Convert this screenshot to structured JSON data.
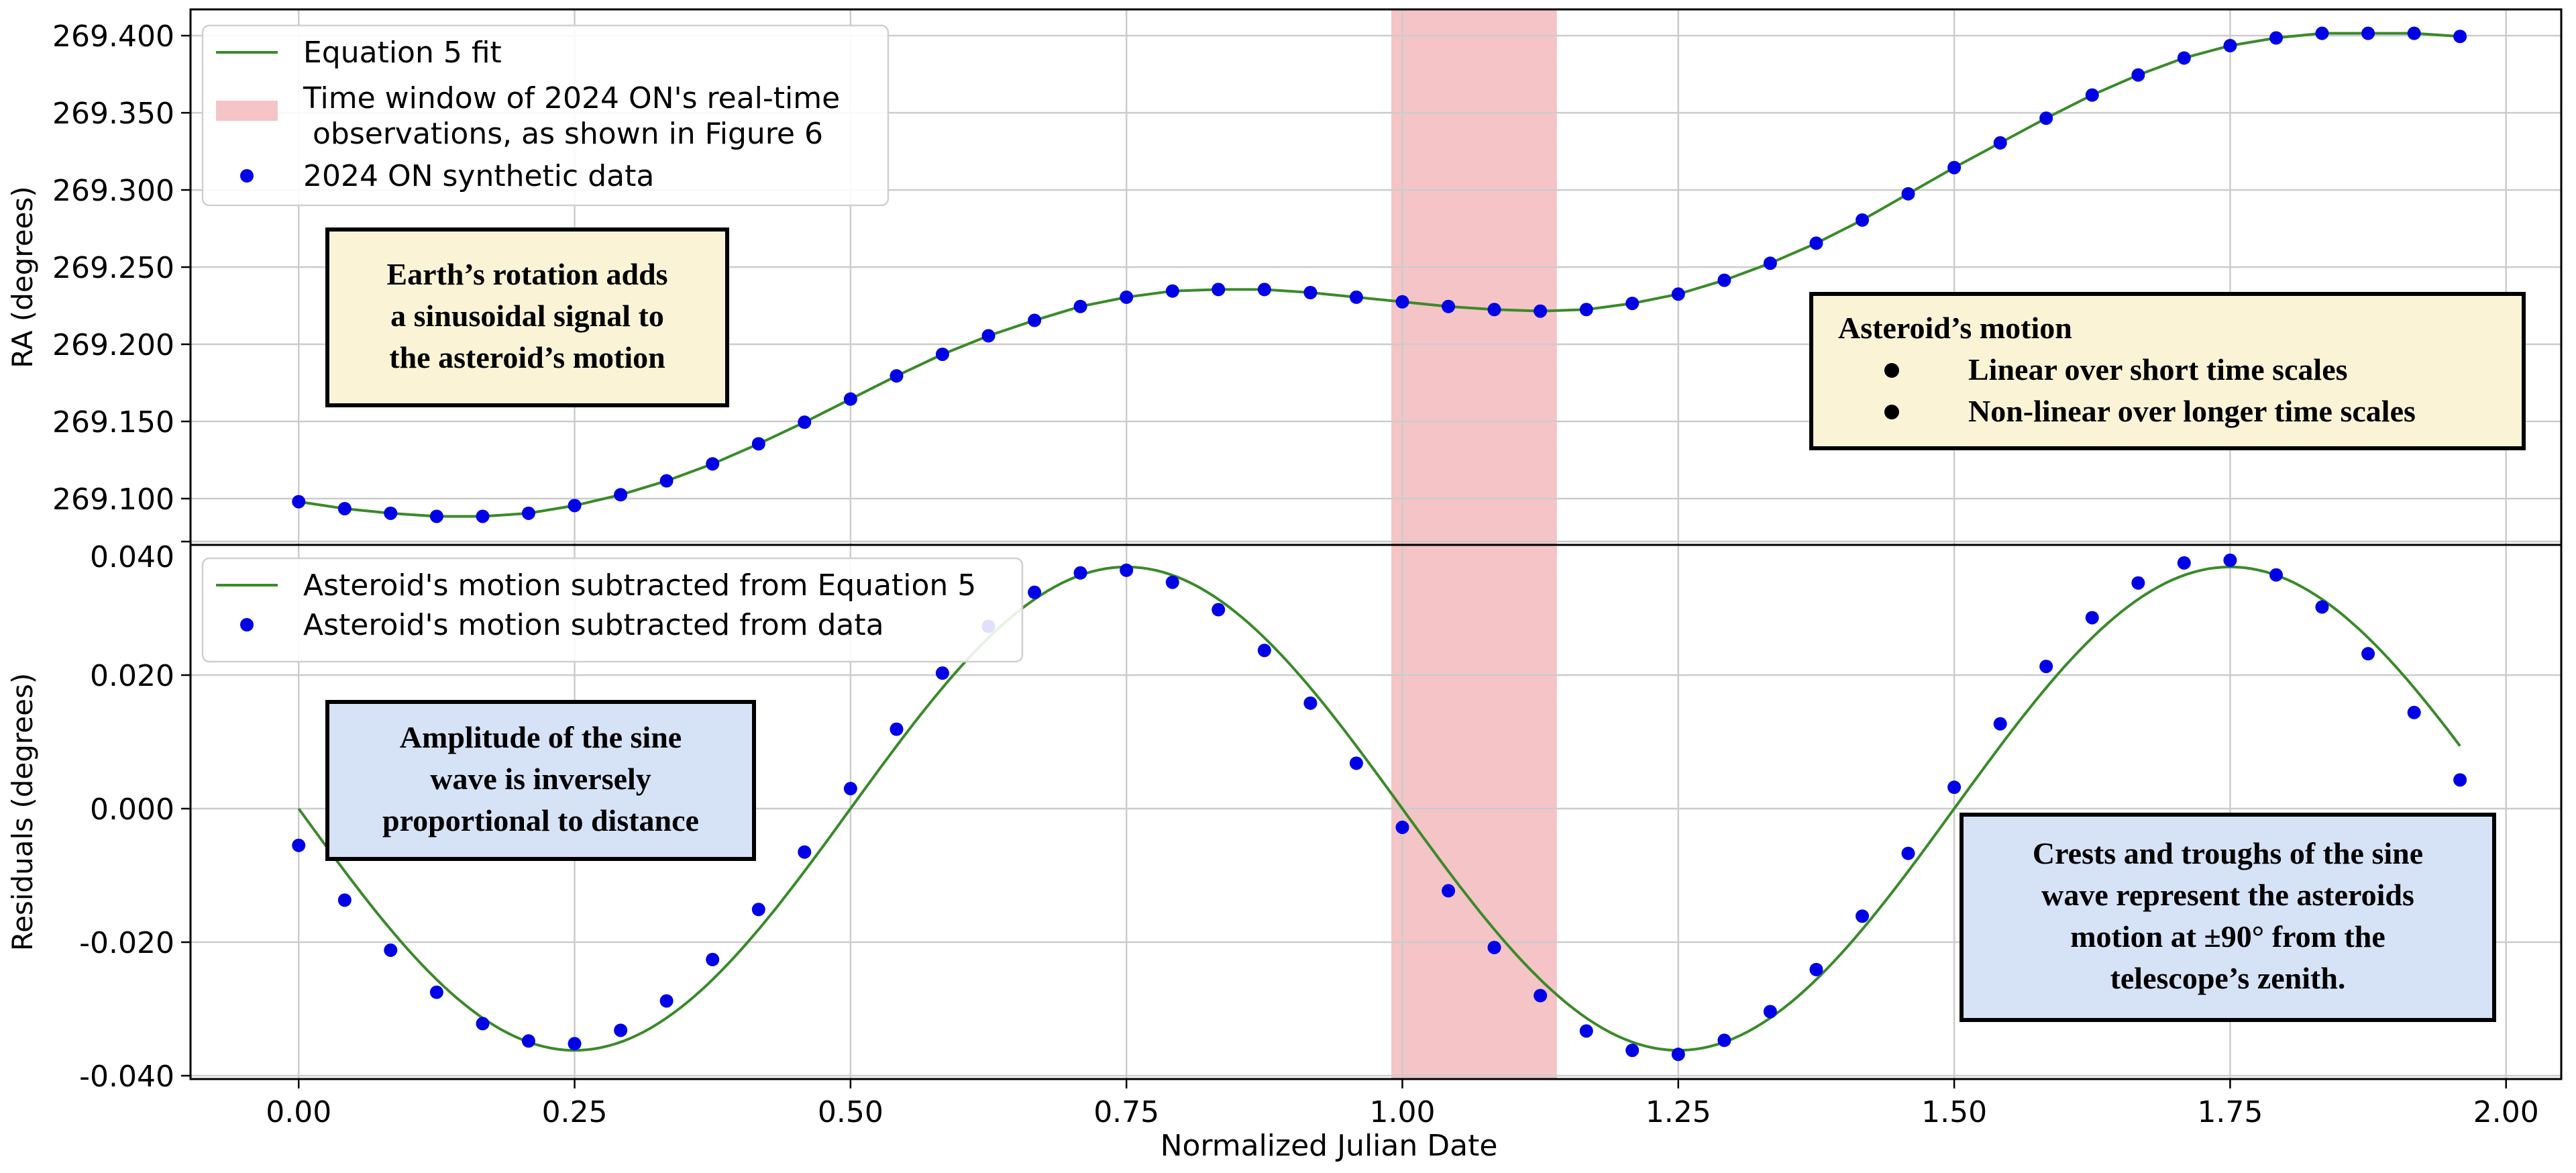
{
  "chart_data": [
    {
      "type": "line",
      "ylabel": "RA (degrees)",
      "xlim": [
        -0.098,
        2.05
      ],
      "ylim": [
        269.07,
        269.417
      ],
      "yticks": [
        "269.100",
        "269.150",
        "269.200",
        "269.250",
        "269.300",
        "269.350",
        "269.400"
      ],
      "ytick_values": [
        269.1,
        269.15,
        269.2,
        269.25,
        269.3,
        269.35,
        269.4
      ],
      "grid": true,
      "legend_position": "upper-left",
      "highlight_window": [
        0.99,
        1.14
      ],
      "series": [
        {
          "name": "Equation 5 fit",
          "type": "line",
          "color": "#3a8a2a",
          "x": [
            0.0,
            0.0417,
            0.0833,
            0.125,
            0.1667,
            0.2083,
            0.25,
            0.2917,
            0.3333,
            0.375,
            0.4167,
            0.4583,
            0.5,
            0.5417,
            0.5833,
            0.625,
            0.6667,
            0.7083,
            0.75,
            0.7917,
            0.8333,
            0.875,
            0.9167,
            0.9583,
            1.0,
            1.0417,
            1.0833,
            1.125,
            1.1667,
            1.2083,
            1.25,
            1.2917,
            1.3333,
            1.375,
            1.4167,
            1.4583,
            1.5,
            1.5417,
            1.5833,
            1.625,
            1.6667,
            1.7083,
            1.75,
            1.7917,
            1.8333,
            1.875,
            1.9167,
            1.9583
          ],
          "values": [
            269.098,
            269.0935,
            269.0905,
            269.0885,
            269.0885,
            269.0905,
            269.0955,
            269.1025,
            269.1115,
            269.1225,
            269.1355,
            269.1495,
            269.1645,
            269.1795,
            269.1935,
            269.2055,
            269.2155,
            269.2245,
            269.2305,
            269.2345,
            269.2355,
            269.2355,
            269.2335,
            269.2305,
            269.2275,
            269.2245,
            269.2225,
            269.2215,
            269.2225,
            269.2265,
            269.2325,
            269.2415,
            269.2525,
            269.2655,
            269.2805,
            269.2975,
            269.3145,
            269.3305,
            269.3465,
            269.3615,
            269.3745,
            269.3855,
            269.3935,
            269.3985,
            269.4015,
            269.4015,
            269.4015,
            269.3995
          ]
        },
        {
          "name": "Time window of 2024 ON's real-time\n observations, as shown in Figure 6",
          "type": "band",
          "color": "#f5c4c6"
        },
        {
          "name": "2024 ON synthetic data",
          "type": "scatter",
          "color": "#0000e6",
          "x": [
            0.0,
            0.0417,
            0.0833,
            0.125,
            0.1667,
            0.2083,
            0.25,
            0.2917,
            0.3333,
            0.375,
            0.4167,
            0.4583,
            0.5,
            0.5417,
            0.5833,
            0.625,
            0.6667,
            0.7083,
            0.75,
            0.7917,
            0.8333,
            0.875,
            0.9167,
            0.9583,
            1.0,
            1.0417,
            1.0833,
            1.125,
            1.1667,
            1.2083,
            1.25,
            1.2917,
            1.3333,
            1.375,
            1.4167,
            1.4583,
            1.5,
            1.5417,
            1.5833,
            1.625,
            1.6667,
            1.7083,
            1.75,
            1.7917,
            1.8333,
            1.875,
            1.9167,
            1.9583
          ],
          "values": [
            269.098,
            269.0935,
            269.0905,
            269.0885,
            269.0885,
            269.0905,
            269.0955,
            269.1025,
            269.1115,
            269.1225,
            269.1355,
            269.1495,
            269.1645,
            269.1795,
            269.1935,
            269.2055,
            269.2155,
            269.2245,
            269.2305,
            269.2345,
            269.2355,
            269.2355,
            269.2335,
            269.2305,
            269.2275,
            269.2245,
            269.2225,
            269.2215,
            269.2225,
            269.2265,
            269.2325,
            269.2415,
            269.2525,
            269.2655,
            269.2805,
            269.2975,
            269.3145,
            269.3305,
            269.3465,
            269.3615,
            269.3745,
            269.3855,
            269.3935,
            269.3985,
            269.4015,
            269.4015,
            269.4015,
            269.3995
          ]
        }
      ],
      "annotations": [
        {
          "lines": [
            "Earth’s rotation adds",
            "a sinusoidal signal to",
            "the asteroid’s motion"
          ],
          "color": "#fbf3d6"
        },
        {
          "lines": [
            "Asteroid’s motion"
          ],
          "bullets": [
            "Linear over short time scales",
            "Non-linear over longer time scales"
          ],
          "color": "#fbf3d6"
        }
      ]
    },
    {
      "type": "line",
      "xlabel": "Normalized Julian Date",
      "ylabel": "Residuals (degrees)",
      "xlim": [
        -0.098,
        2.05
      ],
      "ylim": [
        -0.0405,
        0.0395
      ],
      "xticks": [
        "0.00",
        "0.25",
        "0.50",
        "0.75",
        "1.00",
        "1.25",
        "1.50",
        "1.75",
        "2.00"
      ],
      "xtick_values": [
        0.0,
        0.25,
        0.5,
        0.75,
        1.0,
        1.25,
        1.5,
        1.75,
        2.0
      ],
      "yticks": [
        "0.040",
        "0.020",
        "0.000",
        "-0.020",
        "-0.040"
      ],
      "ytick_values": [
        0.04,
        0.02,
        0.0,
        -0.02,
        -0.04
      ],
      "grid": true,
      "legend_position": "upper-left",
      "highlight_window": [
        0.99,
        1.14
      ],
      "series": [
        {
          "name": "Asteroid's motion subtracted from Equation 5",
          "type": "line",
          "color": "#3a8a2a",
          "amplitude": 0.0362,
          "period": 1.0,
          "phase_zero": 0.0,
          "x_range": [
            0.0,
            1.9583
          ]
        },
        {
          "name": "Asteroid's motion subtracted from data",
          "type": "scatter",
          "color": "#0000e6",
          "x": [
            0.0,
            0.0417,
            0.0833,
            0.125,
            0.1667,
            0.2083,
            0.25,
            0.2917,
            0.3333,
            0.375,
            0.4167,
            0.4583,
            0.5,
            0.5417,
            0.5833,
            0.625,
            0.6667,
            0.7083,
            0.75,
            0.7917,
            0.8333,
            0.875,
            0.9167,
            0.9583,
            1.0,
            1.0417,
            1.0833,
            1.125,
            1.1667,
            1.2083,
            1.25,
            1.2917,
            1.3333,
            1.375,
            1.4167,
            1.4583,
            1.5,
            1.5417,
            1.5833,
            1.625,
            1.6667,
            1.7083,
            1.75,
            1.7917,
            1.8333,
            1.875,
            1.9167,
            1.9583
          ],
          "values": [
            -0.0055,
            -0.0137,
            -0.0212,
            -0.0275,
            -0.0322,
            -0.0348,
            -0.0352,
            -0.0332,
            -0.0288,
            -0.0226,
            -0.0151,
            -0.0065,
            0.003,
            0.0119,
            0.0203,
            0.0273,
            0.0324,
            0.0353,
            0.0357,
            0.0339,
            0.0298,
            0.0237,
            0.0158,
            0.0068,
            -0.0028,
            -0.0123,
            -0.0208,
            -0.028,
            -0.0333,
            -0.0362,
            -0.0368,
            -0.0347,
            -0.0304,
            -0.0241,
            -0.0161,
            -0.0067,
            0.0032,
            0.0127,
            0.0213,
            0.0286,
            0.0338,
            0.0368,
            0.0372,
            0.035,
            0.0302,
            0.0232,
            0.0144,
            0.0043
          ]
        }
      ],
      "annotations": [
        {
          "lines": [
            "Amplitude of the sine",
            "wave is inversely",
            "proportional to distance"
          ],
          "color": "#d6e2f6"
        },
        {
          "lines": [
            "Crests and troughs of the sine",
            "wave represent the asteroids",
            "motion at ±90° from the",
            "telescope’s zenith."
          ],
          "color": "#d6e2f6"
        }
      ]
    }
  ]
}
